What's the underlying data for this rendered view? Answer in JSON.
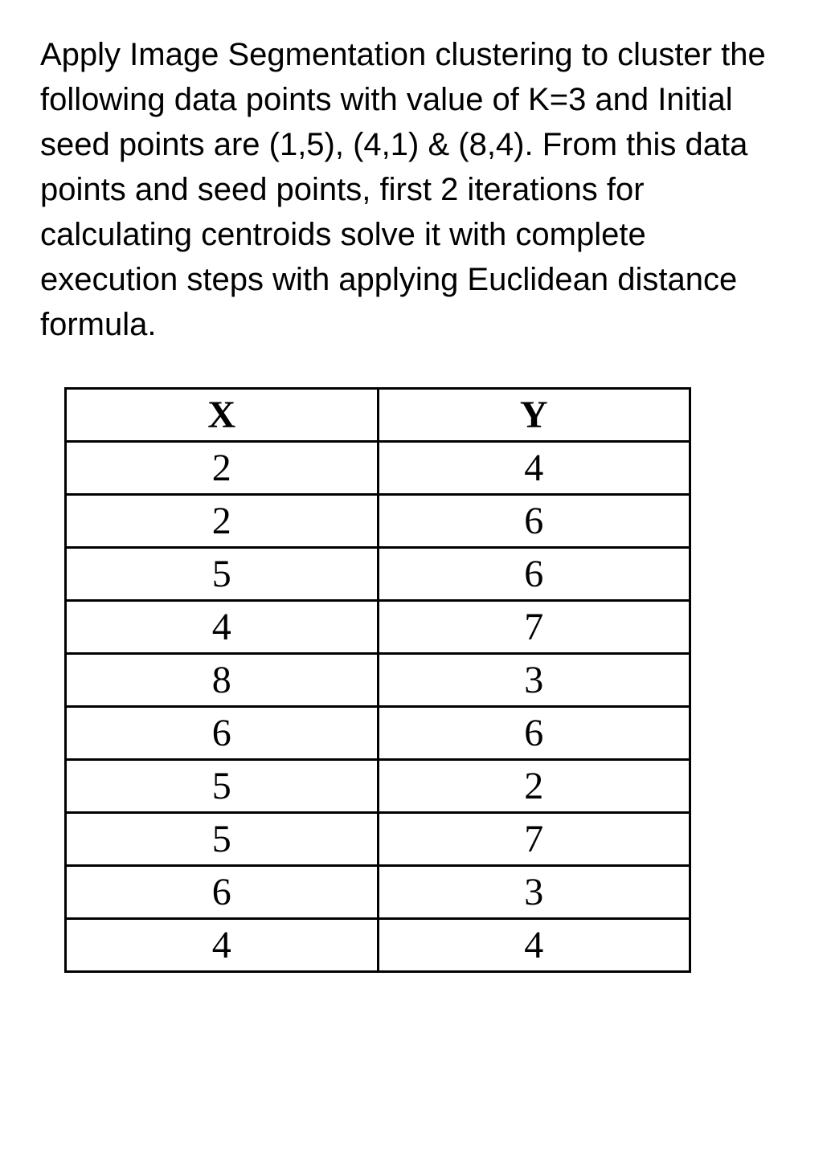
{
  "question": {
    "text": "Apply Image Segmentation clustering to cluster the following data points with value of K=3 and Initial seed points are (1,5), (4,1) & (8,4). From this data points and seed points, first 2 iterations for calculating centroids solve it with complete execution steps with applying Euclidean distance formula."
  },
  "table": {
    "headers": {
      "col1": "X",
      "col2": "Y"
    },
    "rows": [
      {
        "x": "2",
        "y": "4"
      },
      {
        "x": "2",
        "y": "6"
      },
      {
        "x": "5",
        "y": "6"
      },
      {
        "x": "4",
        "y": "7"
      },
      {
        "x": "8",
        "y": "3"
      },
      {
        "x": "6",
        "y": "6"
      },
      {
        "x": "5",
        "y": "2"
      },
      {
        "x": "5",
        "y": "7"
      },
      {
        "x": "6",
        "y": "3"
      },
      {
        "x": "4",
        "y": "4"
      }
    ]
  },
  "styling": {
    "background_color": "#ffffff",
    "text_color": "#000000",
    "border_color": "#000000",
    "question_fontsize": 40,
    "table_fontsize": 48,
    "border_width": 3
  }
}
